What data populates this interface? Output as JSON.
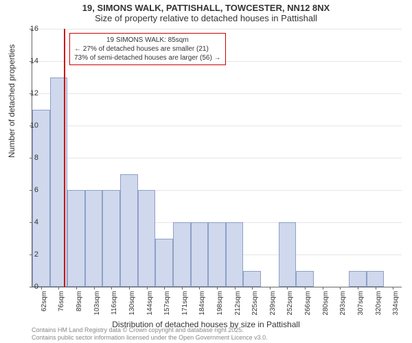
{
  "title_line1": "19, SIMONS WALK, PATTISHALL, TOWCESTER, NN12 8NX",
  "title_line2": "Size of property relative to detached houses in Pattishall",
  "ylabel": "Number of detached properties",
  "xlabel": "Distribution of detached houses by size in Pattishall",
  "chart": {
    "type": "histogram",
    "ylim": [
      0,
      16
    ],
    "ytick_step": 2,
    "bar_color": "#cfd8ec",
    "bar_border_color": "#8ca0c8",
    "grid_color": "#e6e6e6",
    "background_color": "#ffffff",
    "marker_color": "#cc0000",
    "marker_x_index": 1.8,
    "categories": [
      "62sqm",
      "76sqm",
      "89sqm",
      "103sqm",
      "116sqm",
      "130sqm",
      "144sqm",
      "157sqm",
      "171sqm",
      "184sqm",
      "198sqm",
      "212sqm",
      "225sqm",
      "239sqm",
      "252sqm",
      "266sqm",
      "280sqm",
      "293sqm",
      "307sqm",
      "320sqm",
      "334sqm"
    ],
    "values": [
      11,
      13,
      6,
      6,
      6,
      7,
      6,
      3,
      4,
      4,
      4,
      4,
      1,
      0,
      4,
      1,
      0,
      0,
      1,
      1,
      0
    ]
  },
  "annotation": {
    "line1": "19 SIMONS WALK: 85sqm",
    "line2": "← 27% of detached houses are smaller (21)",
    "line3": "73% of semi-detached houses are larger (56) →",
    "border_color": "#cc0000"
  },
  "footer": {
    "line1": "Contains HM Land Registry data © Crown copyright and database right 2025.",
    "line2": "Contains public sector information licensed under the Open Government Licence v3.0."
  }
}
